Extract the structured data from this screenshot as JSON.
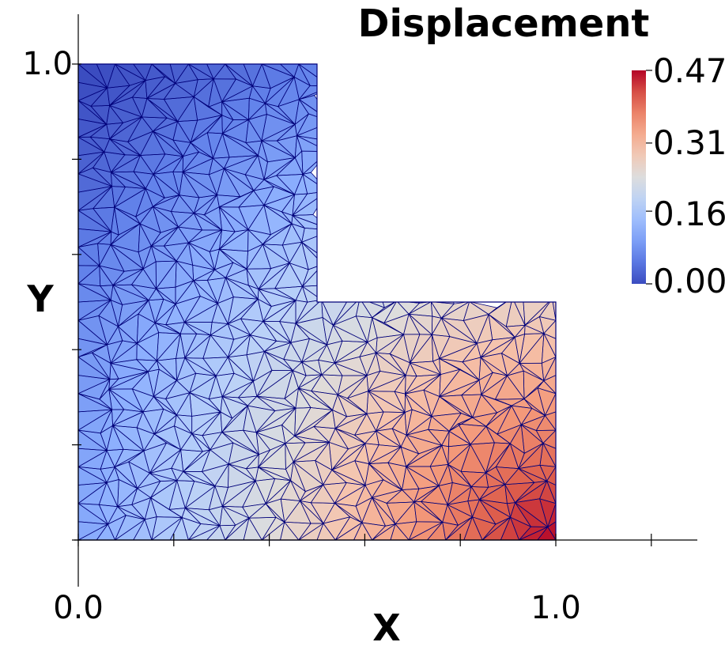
{
  "chart_data": {
    "type": "heatmap",
    "title": "Displacement",
    "xlabel": "X",
    "ylabel": "Y",
    "x_ticks": [
      0.0,
      0.2,
      0.4,
      0.6,
      0.8,
      1.0,
      1.2
    ],
    "y_ticks": [
      0.0,
      0.2,
      0.4,
      0.6,
      0.8,
      1.0
    ],
    "x_tick_labels": [
      "0.0",
      "1.0"
    ],
    "y_tick_labels": [
      "1.0"
    ],
    "xlim": [
      0.0,
      1.3
    ],
    "ylim": [
      -0.1,
      1.1
    ],
    "domain_polygon": [
      [
        0.0,
        0.0
      ],
      [
        1.0,
        0.0
      ],
      [
        1.0,
        0.5
      ],
      [
        0.5,
        0.5
      ],
      [
        0.5,
        1.0
      ],
      [
        0.0,
        1.0
      ]
    ],
    "field": {
      "name": "Displacement",
      "min": 0.0,
      "max": 0.47,
      "description": "magnitude increases toward lower-right corner (1.0, 0.0)"
    },
    "colorbar": {
      "labels": [
        "0.47",
        "0.31",
        "0.16",
        "0.00"
      ],
      "values": [
        0.47,
        0.31,
        0.16,
        0.0
      ],
      "colors": [
        "#b40426",
        "#dc5d4a",
        "#f49a7b",
        "#ddcbbf",
        "#c9d7f0",
        "#aac7fd",
        "#6f92f3",
        "#3b4cc0"
      ],
      "placement": "right"
    },
    "mesh": {
      "element_type": "triangle",
      "line_color": "#00007a"
    },
    "grid": false
  }
}
